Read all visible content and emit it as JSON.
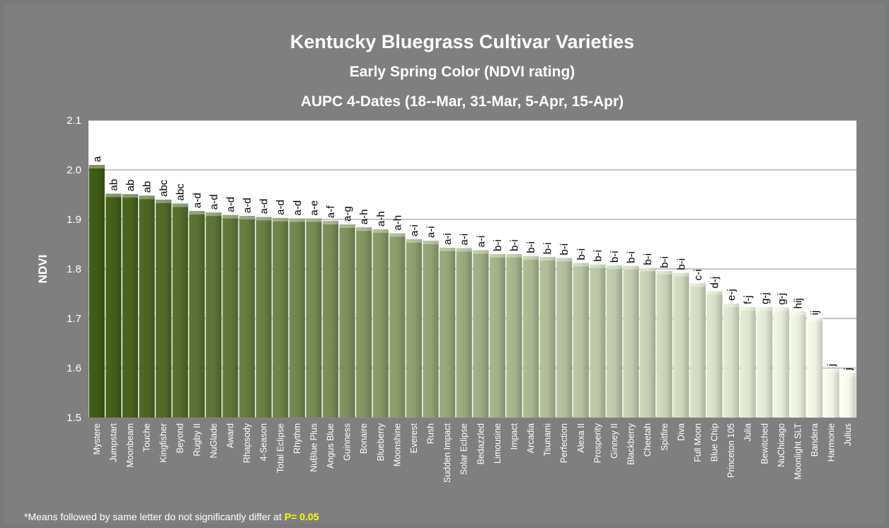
{
  "chart_data": {
    "type": "bar",
    "title": "Kentucky Bluegrass Cultivar Varieties",
    "subtitle": "Early Spring Color (NDVI rating)",
    "subtitle2": "AUPC 4-Dates (18--Mar, 31-Mar, 5-Apr, 15-Apr)",
    "xlabel": "",
    "ylabel": "NDVI",
    "ylim": [
      1.5,
      2.1
    ],
    "yticks": [
      "1.5",
      "1.6",
      "1.7",
      "1.8",
      "1.9",
      "2.0",
      "2.1"
    ],
    "grid": true,
    "legend": "none",
    "categories": [
      "Mystere",
      "Jumpstart",
      "Moonbeam",
      "Touche",
      "Kingfisher",
      "Beyond",
      "Rugby II",
      "NuGlade",
      "Award",
      "Rhapsody",
      "4-Season",
      "Total Eclipse",
      "Rhythm",
      "NuBlue Plus",
      "Angus Blue",
      "Guinness",
      "Bonaire",
      "Blueberry",
      "Moonshine",
      "Everest",
      "Rush",
      "Sudden Impact",
      "Solar Eclipse",
      "Bedazzled",
      "Limousine",
      "Impact",
      "Arcadia",
      "Tsunami",
      "Perfection",
      "Alexa II",
      "Prosperity",
      "Ginney II",
      "Blackberry",
      "Cheetah",
      "Spitfire",
      "Diva",
      "Full Moon",
      "Blue Chip",
      "Princeton 105",
      "Julia",
      "Bewitched",
      "NuChicago",
      "Moonlight SLT",
      "Bandera",
      "Harmonie",
      "Julius"
    ],
    "values": [
      2.01,
      1.952,
      1.951,
      1.948,
      1.94,
      1.932,
      1.917,
      1.914,
      1.909,
      1.907,
      1.905,
      1.903,
      1.902,
      1.902,
      1.897,
      1.89,
      1.884,
      1.88,
      1.872,
      1.86,
      1.857,
      1.843,
      1.842,
      1.838,
      1.83,
      1.83,
      1.826,
      1.824,
      1.822,
      1.812,
      1.809,
      1.807,
      1.806,
      1.802,
      1.796,
      1.792,
      1.771,
      1.755,
      1.73,
      1.723,
      1.723,
      1.722,
      1.714,
      1.701,
      1.598,
      1.59
    ],
    "letters": [
      "a",
      "ab",
      "ab",
      "ab",
      "abc",
      "abc",
      "a-d",
      "a-d",
      "a-d",
      "a-d",
      "a-d",
      "a-d",
      "a-d",
      "a-e",
      "a-f",
      "a-g",
      "a-h",
      "a-h",
      "a-h",
      "a-i",
      "a-i",
      "a-i",
      "a-i",
      "a-i",
      "b-i",
      "b-i",
      "b-i",
      "b-i",
      "b-i",
      "b-i",
      "b-i",
      "b-i",
      "b-i",
      "b-i",
      "b-i",
      "b-i",
      "c-i",
      "d-j",
      "e-j",
      "f-j",
      "g-j",
      "g-j",
      "hij",
      "ij",
      "j",
      "j"
    ],
    "colors": {
      "background": "#7f7f7f",
      "plot_area": "#ffffff",
      "bar_dark": "#3f5a14",
      "bar_light": "#f5f9ea",
      "footnote_highlight": "#ffff00"
    }
  },
  "footnote": {
    "text": "*Means  followed by same letter do not significantly differ at ",
    "highlight": "P= 0.05"
  }
}
